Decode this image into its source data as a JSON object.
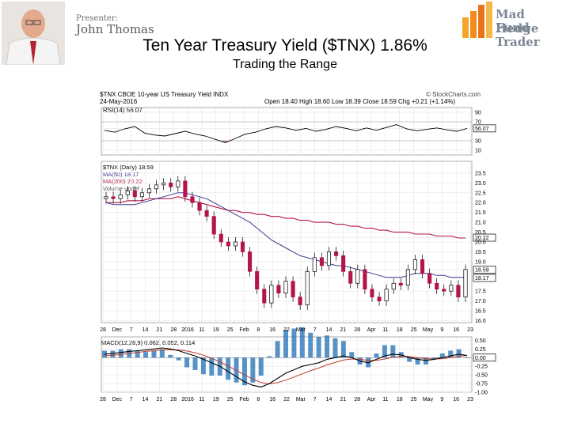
{
  "header": {
    "presenter_label": "Presenter:",
    "presenter_name": "John Thomas",
    "logo_line1": "Mad Hedge",
    "logo_line2": "Fund Trader"
  },
  "title": "Ten Year Treasury Yield ($TNX) 1.86%",
  "subtitle": "Trading the Range",
  "colors": {
    "candle_up": "#000000",
    "candle_down": "#b4144a",
    "ma50": "#3b3b8f",
    "ma200": "#b4144a",
    "rsi": "#000000",
    "macd_hist": "#1f6fb4",
    "signal": "#c0392b"
  },
  "chart_data": {
    "type": "line",
    "symbol_line": "$TNX CBOE 10-year US Treasury Yield INDX",
    "date_line": "24-May-2016",
    "ohlc_line": "Open 18.40 High 18.60 Low 18.39 Close 18.59 Chg +0.21 (+1.14%)",
    "source": "© StockCharts.com",
    "rsi": {
      "label": "RSI(14) 56.07",
      "ylim": [
        0,
        100
      ],
      "ticks": [
        "90",
        "70",
        "56.07",
        "30",
        "10"
      ],
      "tick_values": [
        90,
        70,
        56.07,
        30,
        10
      ],
      "values": [
        52,
        48,
        55,
        60,
        46,
        42,
        40,
        45,
        50,
        44,
        40,
        33,
        26,
        35,
        44,
        48,
        55,
        60,
        57,
        52,
        56,
        50,
        54,
        60,
        56,
        51,
        57,
        52,
        58,
        64,
        55,
        51,
        54,
        57,
        53,
        50,
        56
      ]
    },
    "price": {
      "legend": [
        "$TNX (Daily) 18.59",
        "MA(50) 18.17",
        "MA(200) 20.22",
        "Volume undef"
      ],
      "ylim": [
        15.9,
        24.1
      ],
      "ticks": [
        "23.5",
        "23.0",
        "22.5",
        "22.0",
        "21.5",
        "21.0",
        "20.5",
        "20.22",
        "20.0",
        "19.5",
        "19.0",
        "18.59",
        "18.17",
        "17.5",
        "17.0",
        "16.5",
        "16.0"
      ],
      "tick_values": [
        23.5,
        23.0,
        22.5,
        22.0,
        21.5,
        21.0,
        20.5,
        20.22,
        20.0,
        19.5,
        19.0,
        18.59,
        18.17,
        17.5,
        17.0,
        16.5,
        16.0
      ],
      "close": [
        22.3,
        22.2,
        22.4,
        22.6,
        22.3,
        22.5,
        22.7,
        22.9,
        23.0,
        22.8,
        23.1,
        22.3,
        22.0,
        21.6,
        21.3,
        20.4,
        20.0,
        19.8,
        20.0,
        19.5,
        18.5,
        17.6,
        16.9,
        17.8,
        17.4,
        18.0,
        17.2,
        16.8,
        18.5,
        19.2,
        18.8,
        19.5,
        19.3,
        18.5,
        17.9,
        18.6,
        17.6,
        17.2,
        17.0,
        17.6,
        17.9,
        17.8,
        18.6,
        19.1,
        18.4,
        17.9,
        17.6,
        17.5,
        17.8,
        17.2,
        18.6
      ],
      "ma50": [
        22.0,
        21.9,
        21.9,
        21.9,
        21.9,
        22.0,
        22.1,
        22.2,
        22.3,
        22.4,
        22.5,
        22.5,
        22.4,
        22.3,
        22.2,
        22.0,
        21.8,
        21.6,
        21.4,
        21.2,
        21.0,
        20.7,
        20.4,
        20.1,
        19.9,
        19.7,
        19.5,
        19.3,
        19.2,
        19.1,
        19.0,
        18.9,
        18.8,
        18.8,
        18.7,
        18.6,
        18.5,
        18.4,
        18.3,
        18.2,
        18.2,
        18.2,
        18.3,
        18.4,
        18.4,
        18.4,
        18.3,
        18.3,
        18.2,
        18.2,
        18.2
      ],
      "ma200": [
        22.0,
        22.0,
        22.0,
        22.1,
        22.1,
        22.1,
        22.2,
        22.2,
        22.2,
        22.2,
        22.3,
        22.2,
        22.1,
        22.0,
        21.9,
        21.8,
        21.7,
        21.6,
        21.6,
        21.5,
        21.5,
        21.4,
        21.4,
        21.3,
        21.3,
        21.2,
        21.2,
        21.1,
        21.1,
        21.0,
        21.0,
        21.0,
        20.9,
        20.9,
        20.8,
        20.8,
        20.7,
        20.7,
        20.6,
        20.6,
        20.5,
        20.5,
        20.5,
        20.4,
        20.4,
        20.4,
        20.3,
        20.3,
        20.3,
        20.2,
        20.2
      ]
    },
    "x_ticks": [
      "28",
      "Dec",
      "7",
      "14",
      "21",
      "28",
      "2016",
      "11",
      "19",
      "25",
      "Feb",
      "8",
      "16",
      "22",
      "Mar",
      "7",
      "14",
      "21",
      "28",
      "Apr",
      "11",
      "18",
      "25",
      "May",
      "9",
      "16",
      "23"
    ],
    "macd": {
      "label": "MACD(12,26,9) 0.062, 0.052, 0.114",
      "ylim": [
        -1.0,
        0.6
      ],
      "ticks": [
        "0.50",
        "0.25",
        "0.00",
        "-0.25",
        "-0.50",
        "-0.75",
        "-1.00"
      ],
      "tick_values": [
        0.5,
        0.25,
        0.0,
        -0.25,
        -0.5,
        -0.75,
        -1.0
      ],
      "macd": [
        0.1,
        0.12,
        0.15,
        0.18,
        0.2,
        0.22,
        0.25,
        0.28,
        0.25,
        0.2,
        0.12,
        0.05,
        -0.05,
        -0.15,
        -0.25,
        -0.4,
        -0.55,
        -0.7,
        -0.8,
        -0.85,
        -0.75,
        -0.6,
        -0.45,
        -0.35,
        -0.25,
        -0.2,
        -0.15,
        -0.05,
        0.0,
        0.05,
        0.0,
        -0.1,
        -0.15,
        -0.05,
        0.05,
        0.1,
        0.08,
        0.0,
        -0.05,
        -0.08,
        -0.05,
        0.0,
        0.05,
        0.1,
        0.06
      ],
      "signal": [
        0.05,
        0.07,
        0.09,
        0.12,
        0.15,
        0.18,
        0.2,
        0.22,
        0.23,
        0.22,
        0.19,
        0.14,
        0.07,
        -0.02,
        -0.12,
        -0.24,
        -0.37,
        -0.5,
        -0.62,
        -0.72,
        -0.76,
        -0.72,
        -0.65,
        -0.56,
        -0.47,
        -0.38,
        -0.3,
        -0.21,
        -0.14,
        -0.07,
        -0.04,
        -0.05,
        -0.08,
        -0.08,
        -0.04,
        0.01,
        0.04,
        0.03,
        0.0,
        -0.03,
        -0.04,
        -0.03,
        0.0,
        0.04,
        0.06
      ]
    }
  }
}
